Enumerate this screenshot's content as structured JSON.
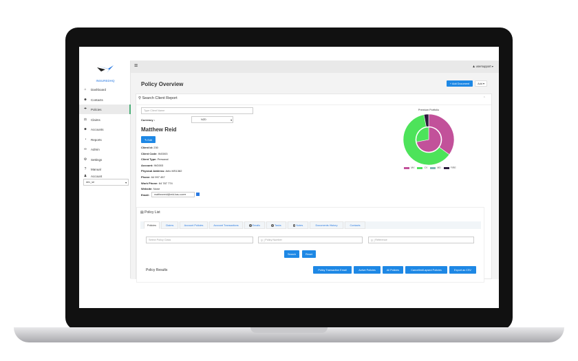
{
  "app": {
    "logo_text": "INSUREDHQ",
    "user": "usersupport"
  },
  "sidebar": {
    "items": [
      {
        "label": "Dashboard",
        "icon": "dashboard-icon",
        "glyph": "⌂"
      },
      {
        "label": "Contacts",
        "icon": "users-icon",
        "glyph": "☻"
      },
      {
        "label": "Policies",
        "icon": "umbrella-icon",
        "glyph": "☂"
      },
      {
        "label": "Claims",
        "icon": "gavel-icon",
        "glyph": "⚖"
      },
      {
        "label": "Accounts",
        "icon": "users-icon",
        "glyph": "☻"
      },
      {
        "label": "Reports",
        "icon": "reports-icon",
        "glyph": "◔"
      },
      {
        "label": "Admin",
        "icon": "link-icon",
        "glyph": "∞"
      },
      {
        "label": "Settings",
        "icon": "gear-icon",
        "glyph": "⚙"
      },
      {
        "label": "Manual",
        "icon": "question-icon",
        "glyph": "?"
      },
      {
        "label": "Account",
        "icon": "user-icon",
        "glyph": "♟"
      }
    ],
    "select_value": "dev_se"
  },
  "header": {
    "title": "Policy Overview",
    "add_document": "+ Add Document",
    "add": "Add ▾"
  },
  "search": {
    "title": "Search Client Report",
    "placeholder": "Type Client Name",
    "currency_label": "Currency :",
    "currency_value": "NZD"
  },
  "client": {
    "name": "Matthew Reid",
    "edit": "✎ Edit",
    "fields": [
      {
        "k": "Client Id:",
        "v": "230"
      },
      {
        "k": "Client Code:",
        "v": "ING003"
      },
      {
        "k": "Client Type:",
        "v": "Personal"
      },
      {
        "k": "Account:",
        "v": "ING003"
      },
      {
        "k": "Physical Address:",
        "v": "Aelo MS1382"
      },
      {
        "k": "Phone:",
        "v": "64 997 457"
      },
      {
        "k": "Work Phone:",
        "v": "64 787 774"
      },
      {
        "k": "Website:",
        "v": "None"
      }
    ],
    "email_label": "Email:",
    "email_value": "matthewreid@reid-bau.com"
  },
  "chart_data": {
    "type": "pie",
    "title": "Premium Portfolio",
    "categories": [
      "MV",
      "CV",
      "MD",
      "FIRE"
    ],
    "colors": [
      "#c2519a",
      "#4de35a",
      "#7fb5b5",
      "#2a1a3a"
    ],
    "series": [
      {
        "values": [
          35,
          62,
          0,
          3
        ]
      },
      {
        "values": [
          72,
          28,
          0,
          0
        ]
      }
    ],
    "legend": "bottom"
  },
  "policy_list": {
    "title": "Policy List",
    "tabs": [
      {
        "label": "Policies"
      },
      {
        "label": "Claims"
      },
      {
        "label": "Account Policies"
      },
      {
        "label": "Account Transactions"
      },
      {
        "label": "Emails",
        "badge": "0"
      },
      {
        "label": "Tasks",
        "badge": "0"
      },
      {
        "label": "Notes",
        "badge": "0"
      },
      {
        "label": "Documents History"
      },
      {
        "label": "Contacts"
      }
    ],
    "class_placeholder": "Select Policy Class",
    "number_placeholder": "Policy Number",
    "reference_placeholder": "Reference",
    "search": "Search",
    "reset": "Reset",
    "results_title": "Policy Results",
    "actions": [
      "Policy Transaction Email",
      "Active Policies",
      "All Policies",
      "Cancelled/Lapsed Policies",
      "Export as CSV"
    ]
  }
}
